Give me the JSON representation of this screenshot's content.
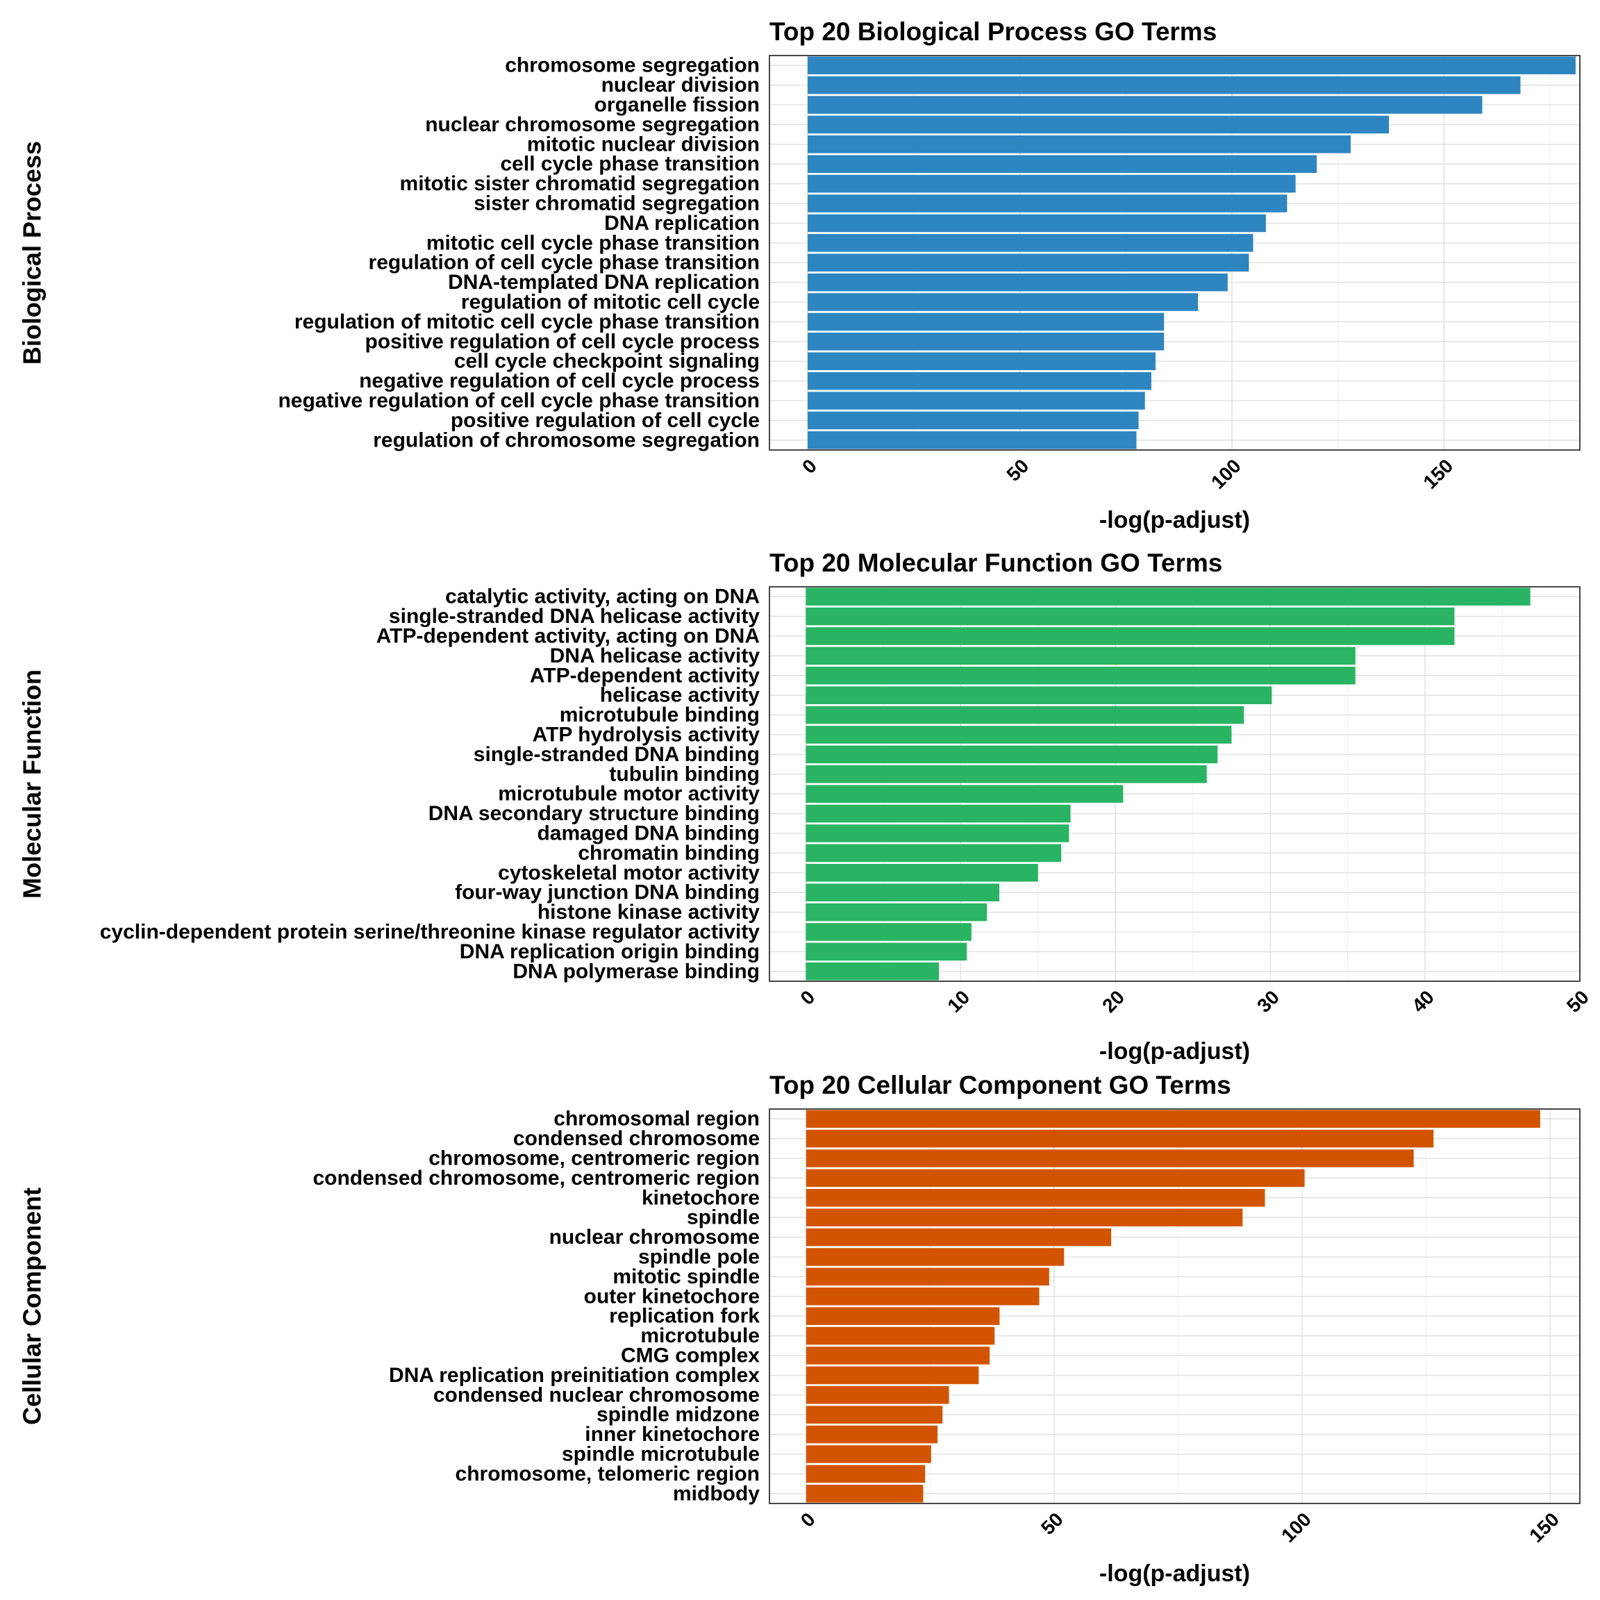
{
  "chart_data": [
    {
      "type": "bar",
      "orientation": "horizontal",
      "title": "Top 20 Biological Process GO Terms",
      "xlabel": "-log(p-adjust)",
      "ylabel": "Biological Process",
      "color": "#2E86C1",
      "xlim": [
        -9,
        182
      ],
      "xticks": [
        0,
        50,
        100,
        150
      ],
      "grid": true,
      "categories": [
        "chromosome segregation",
        "nuclear division",
        "organelle fission",
        "nuclear chromosome segregation",
        "mitotic nuclear division",
        "cell cycle phase transition",
        "mitotic sister chromatid segregation",
        "sister chromatid segregation",
        "DNA replication",
        "mitotic cell cycle phase transition",
        "regulation of cell cycle phase transition",
        "DNA-templated DNA replication",
        "regulation of mitotic cell cycle",
        "regulation of mitotic cell cycle phase transition",
        "positive regulation of cell cycle process",
        "cell cycle checkpoint signaling",
        "negative regulation of cell cycle process",
        "negative regulation of cell cycle phase transition",
        "positive regulation of cell cycle",
        "regulation of chromosome segregation"
      ],
      "values": [
        181,
        168,
        159,
        137,
        128,
        120,
        115,
        113,
        108,
        105,
        104,
        99,
        92,
        84,
        84,
        82,
        81,
        79.5,
        78,
        77.5
      ]
    },
    {
      "type": "bar",
      "orientation": "horizontal",
      "title": "Top 20 Molecular Function GO Terms",
      "xlabel": "-log(p-adjust)",
      "ylabel": "Molecular Function",
      "color": "#28B463",
      "xlim": [
        -2.35,
        50
      ],
      "xticks": [
        0,
        10,
        20,
        30,
        40,
        50
      ],
      "grid": true,
      "categories": [
        "catalytic activity, acting on DNA",
        "single-stranded DNA helicase activity",
        "ATP-dependent activity, acting on DNA",
        "DNA helicase activity",
        "ATP-dependent activity",
        "helicase activity",
        "microtubule binding",
        "ATP hydrolysis activity",
        "single-stranded DNA binding",
        "tubulin binding",
        "microtubule motor activity",
        "DNA secondary structure binding",
        "damaged DNA binding",
        "chromatin binding",
        "cytoskeletal motor activity",
        "four-way junction DNA binding",
        "histone kinase activity",
        "cyclin-dependent protein serine/threonine kinase regulator activity",
        "DNA replication origin binding",
        "DNA polymerase binding"
      ],
      "values": [
        46.8,
        41.9,
        41.9,
        35.5,
        35.5,
        30.1,
        28.3,
        27.5,
        26.6,
        25.9,
        20.5,
        17.1,
        17.0,
        16.5,
        15.0,
        12.5,
        11.7,
        10.7,
        10.4,
        8.6
      ]
    },
    {
      "type": "bar",
      "orientation": "horizontal",
      "title": "Top 20 Cellular Component GO Terms",
      "xlabel": "-log(p-adjust)",
      "ylabel": "Cellular Component",
      "color": "#D35400",
      "xlim": [
        -7.4,
        156
      ],
      "xticks": [
        0,
        50,
        100,
        150
      ],
      "grid": true,
      "categories": [
        "chromosomal region",
        "condensed chromosome",
        "chromosome, centromeric region",
        "condensed chromosome, centromeric region",
        "kinetochore",
        "spindle",
        "nuclear chromosome",
        "spindle pole",
        "mitotic spindle",
        "outer kinetochore",
        "replication fork",
        "microtubule",
        "CMG complex",
        "DNA replication preinitiation complex",
        "condensed nuclear chromosome",
        "spindle midzone",
        "inner kinetochore",
        "spindle microtubule",
        "chromosome, telomeric region",
        "midbody"
      ],
      "values": [
        148,
        126.5,
        122.5,
        100.5,
        92.5,
        88,
        61.5,
        52,
        49,
        47,
        39,
        38,
        37,
        34.8,
        28.8,
        27.5,
        26.5,
        25.2,
        24,
        23.6
      ]
    }
  ]
}
